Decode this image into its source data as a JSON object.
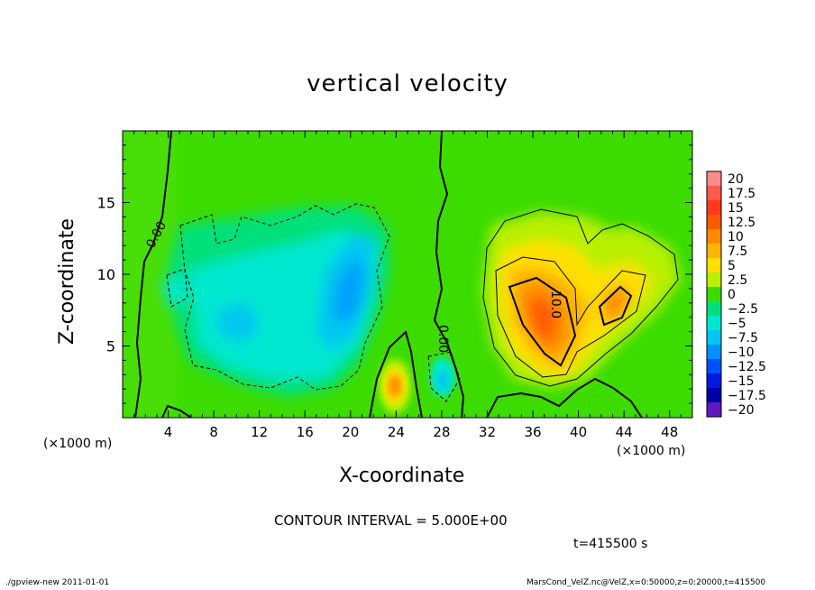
{
  "chart_data": {
    "type": "heatmap",
    "title": "vertical velocity",
    "xlabel": "X-coordinate",
    "ylabel": "Z-coordinate",
    "x_unit": "(×1000 m)",
    "xlim": [
      0,
      50
    ],
    "ylim": [
      0,
      20
    ],
    "xticks": [
      4,
      8,
      12,
      16,
      20,
      24,
      28,
      32,
      36,
      40,
      44,
      48
    ],
    "yticks": [
      5,
      10,
      15
    ],
    "colorbar": {
      "levels": [
        20,
        17.5,
        15,
        12.5,
        10,
        7.5,
        5,
        2.5,
        0,
        -2.5,
        -5,
        -7.5,
        -10,
        -12.5,
        -15,
        -17.5,
        -20
      ],
      "labels": [
        "20",
        "17.5",
        "15",
        "12.5",
        "10",
        "7.5",
        "5",
        "2.5",
        "0",
        "−2.5",
        "−5",
        "−7.5",
        "−10",
        "−12.5",
        "−15",
        "−17.5",
        "−20"
      ],
      "colors": [
        "#ff8a8a",
        "#ff5a4a",
        "#ff3a1a",
        "#ff5a00",
        "#ff8a00",
        "#ffb400",
        "#ffe000",
        "#b8f000",
        "#3cdc00",
        "#00e07a",
        "#00e8d0",
        "#00c8f0",
        "#0090ff",
        "#0050ff",
        "#0018e0",
        "#0000a8",
        "#6018c0"
      ]
    },
    "contour_interval": "CONTOUR INTERVAL = 5.000E+00",
    "contour_labels": [
      "0.00",
      "10.0",
      "0.00"
    ],
    "time_label": "t=415500 s"
  },
  "footer": {
    "left": "./gpview-new   2011-01-01",
    "right": "MarsCond_VelZ.nc@VelZ,x=0:50000,z=0:20000,t=415500"
  }
}
